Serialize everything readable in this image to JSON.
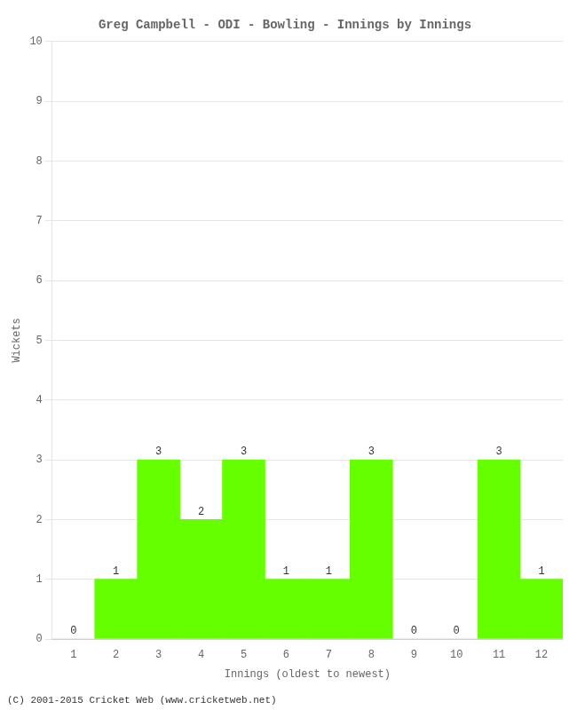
{
  "chart_data": {
    "type": "bar",
    "title": "Greg Campbell - ODI - Bowling - Innings by Innings",
    "x_label": "Innings (oldest to newest)",
    "y_label": "Wickets",
    "categories": [
      "1",
      "2",
      "3",
      "4",
      "5",
      "6",
      "7",
      "8",
      "9",
      "10",
      "11",
      "12"
    ],
    "values": [
      0,
      1,
      3,
      2,
      3,
      1,
      1,
      3,
      0,
      0,
      3,
      1
    ],
    "color": "#66ff00",
    "ylim": [
      0,
      10
    ],
    "yticks": [
      0,
      1,
      2,
      3,
      4,
      5,
      6,
      7,
      8,
      9,
      10
    ],
    "grid": true,
    "data_labels": true,
    "annotations": [
      "(C) 2001-2015 Cricket Web (www.cricketweb.net)"
    ]
  }
}
